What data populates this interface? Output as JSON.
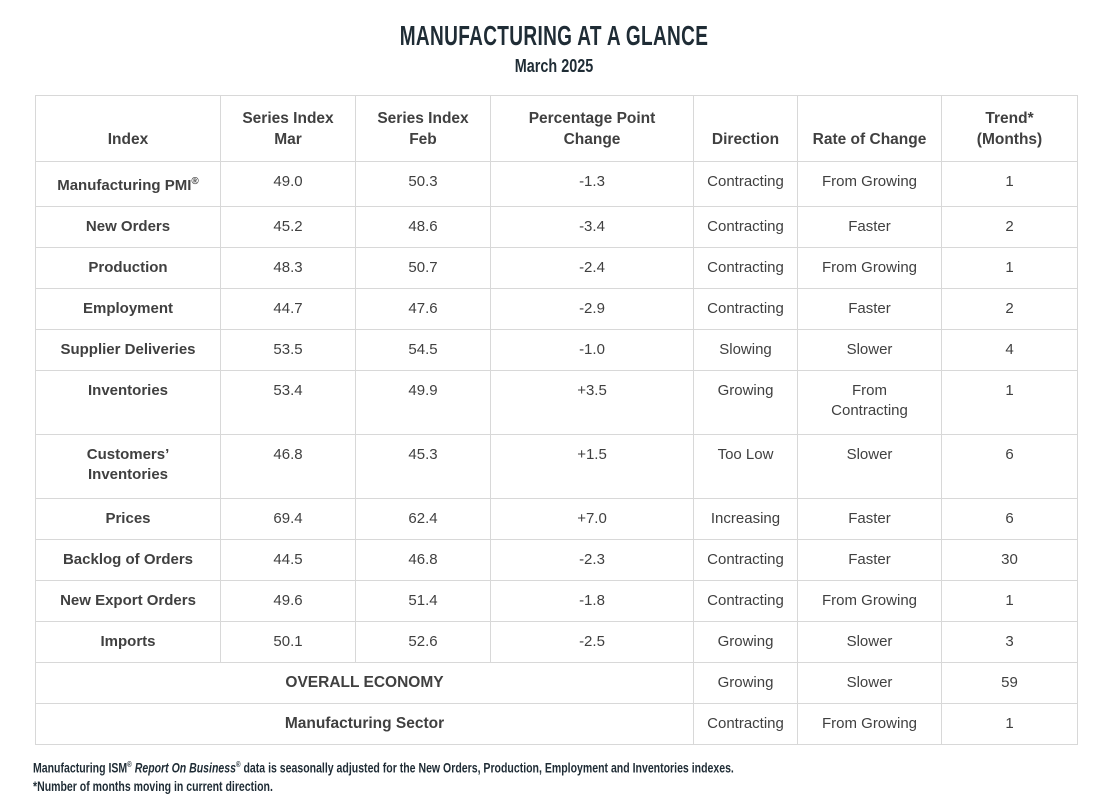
{
  "title": "MANUFACTURING AT A GLANCE",
  "subtitle": "March 2025",
  "colors": {
    "title_text": "#1f2c35",
    "table_text": "#404040",
    "table_border": "#d8d8d8",
    "background": "#ffffff"
  },
  "table": {
    "headers": [
      "Index",
      "Series Index\nMar",
      "Series Index\nFeb",
      "Percentage Point\nChange",
      "Direction",
      "Rate of Change",
      "Trend*\n(Months)"
    ],
    "rows": [
      {
        "index": "Manufacturing PMI®",
        "mar": "49.0",
        "feb": "50.3",
        "change": "-1.3",
        "direction": "Contracting",
        "rate": "From Growing",
        "trend": "1"
      },
      {
        "index": "New Orders",
        "mar": "45.2",
        "feb": "48.6",
        "change": "-3.4",
        "direction": "Contracting",
        "rate": "Faster",
        "trend": "2"
      },
      {
        "index": "Production",
        "mar": "48.3",
        "feb": "50.7",
        "change": "-2.4",
        "direction": "Contracting",
        "rate": "From Growing",
        "trend": "1"
      },
      {
        "index": "Employment",
        "mar": "44.7",
        "feb": "47.6",
        "change": "-2.9",
        "direction": "Contracting",
        "rate": "Faster",
        "trend": "2"
      },
      {
        "index": "Supplier Deliveries",
        "mar": "53.5",
        "feb": "54.5",
        "change": "-1.0",
        "direction": "Slowing",
        "rate": "Slower",
        "trend": "4"
      },
      {
        "index": "Inventories",
        "mar": "53.4",
        "feb": "49.9",
        "change": "+3.5",
        "direction": "Growing",
        "rate": "From\nContracting",
        "trend": "1",
        "tall": true
      },
      {
        "index": "Customers’\nInventories",
        "mar": "46.8",
        "feb": "45.3",
        "change": "+1.5",
        "direction": "Too Low",
        "rate": "Slower",
        "trend": "6",
        "tall": true
      },
      {
        "index": "Prices",
        "mar": "69.4",
        "feb": "62.4",
        "change": "+7.0",
        "direction": "Increasing",
        "rate": "Faster",
        "trend": "6"
      },
      {
        "index": "Backlog of Orders",
        "mar": "44.5",
        "feb": "46.8",
        "change": "-2.3",
        "direction": "Contracting",
        "rate": "Faster",
        "trend": "30"
      },
      {
        "index": "New Export Orders",
        "mar": "49.6",
        "feb": "51.4",
        "change": "-1.8",
        "direction": "Contracting",
        "rate": "From Growing",
        "trend": "1"
      },
      {
        "index": "Imports",
        "mar": "50.1",
        "feb": "52.6",
        "change": "-2.5",
        "direction": "Growing",
        "rate": "Slower",
        "trend": "3"
      }
    ],
    "summary_rows": [
      {
        "label": "OVERALL ECONOMY",
        "direction": "Growing",
        "rate": "Slower",
        "trend": "59"
      },
      {
        "label": "Manufacturing Sector",
        "direction": "Contracting",
        "rate": "From Growing",
        "trend": "1"
      }
    ]
  },
  "footnotes": {
    "source_segments": [
      {
        "text": "Manufacturing ISM",
        "style": "normal"
      },
      {
        "text": "®",
        "style": "sup"
      },
      {
        "text": " ",
        "style": "normal"
      },
      {
        "text": "Report On Business",
        "style": "italic"
      },
      {
        "text": "®",
        "style": "sup"
      },
      {
        "text": " data is seasonally adjusted for the New Orders, Production, Employment and Inventories indexes.",
        "style": "normal"
      }
    ],
    "trend_note": "*Number of months moving in current direction."
  }
}
